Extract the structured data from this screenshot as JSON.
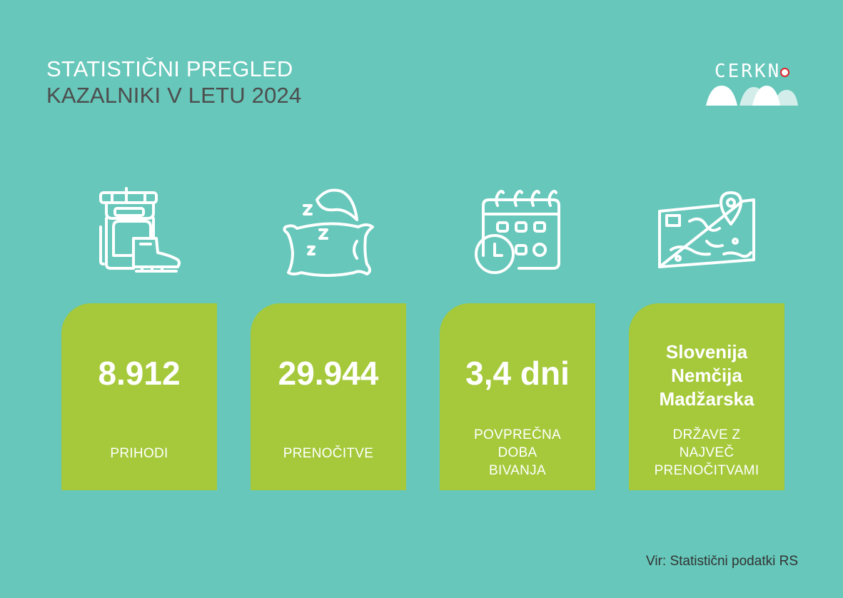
{
  "header": {
    "title_line1": "STATISTIČNI PREGLED",
    "title_line2": "KAZALNIKI V LETU 2024"
  },
  "logo": {
    "text": "CERKN",
    "colors": {
      "ring": "#e0232a",
      "hills": "#ffffff"
    }
  },
  "colors": {
    "background": "#66c7ba",
    "card": "#a5c93a",
    "subtitle": "#4d4d4d"
  },
  "cards": [
    {
      "icon": "backpack-boot-icon",
      "value": "8.912",
      "label_lines": [
        "PRIHODI"
      ]
    },
    {
      "icon": "pillow-moon-sleep-icon",
      "value": "29.944",
      "label_lines": [
        "PRENOČITVE"
      ]
    },
    {
      "icon": "calendar-clock-icon",
      "value": "3,4 dni",
      "label_lines": [
        "POVPREČNA",
        "DOBA",
        "BIVANJA"
      ]
    },
    {
      "icon": "map-location-icon",
      "value_lines": [
        "Slovenija",
        "Nemčija",
        "Madžarska"
      ],
      "label_lines": [
        "DRŽAVE Z",
        "NAJVEČ",
        "PRENOČITVAMI"
      ]
    }
  ],
  "footer": {
    "source": "Vir: Statistični podatki RS"
  }
}
